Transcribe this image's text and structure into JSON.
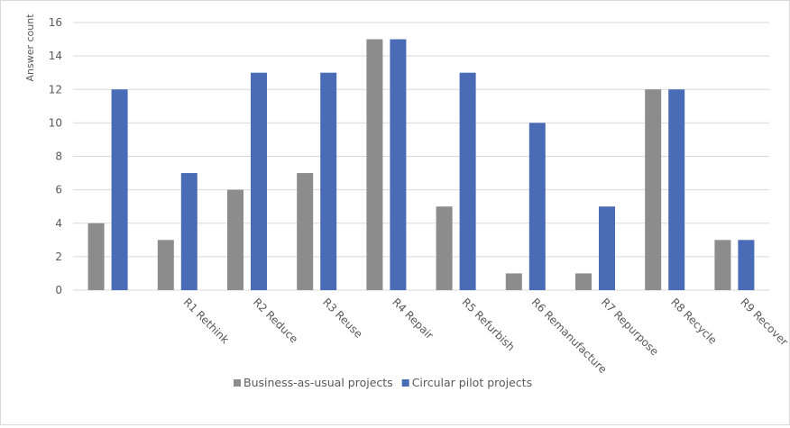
{
  "chart_data": {
    "type": "bar",
    "categories": [
      "",
      "R1 Rethink",
      "R2 Reduce",
      "R3 Reuse",
      "R4 Repair",
      "R5 Refurbish",
      "R6 Remanufacture",
      "R7 Repurpose",
      "R8 Recycle",
      "R9 Recover"
    ],
    "series": [
      {
        "name": "Business-as-usual projects",
        "values": [
          4,
          3,
          6,
          7,
          15,
          5,
          1,
          1,
          12,
          3
        ],
        "color": "#8c8c8c"
      },
      {
        "name": "Circular pilot projects",
        "values": [
          12,
          7,
          13,
          13,
          15,
          13,
          10,
          5,
          12,
          3
        ],
        "color": "#4a6bb5"
      }
    ],
    "xlabel": "",
    "ylabel": "Answer count",
    "ylim": [
      0,
      16
    ],
    "yticks": [
      0,
      2,
      4,
      6,
      8,
      10,
      12,
      14,
      16
    ],
    "grid": true,
    "legend_position": "bottom"
  }
}
